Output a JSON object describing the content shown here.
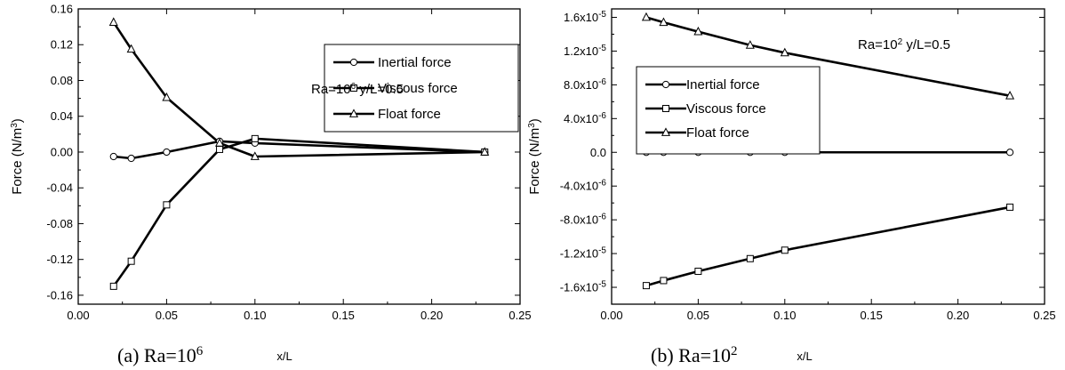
{
  "chart_data": [
    {
      "type": "line",
      "panel": "a",
      "caption": "(a) Ra=10",
      "caption_exp": "6",
      "annotation": "Ra=10",
      "annotation_exp": "6",
      "annotation_tail": " y/L=0.5",
      "xlabel": "x/L",
      "ylabel": "Force (N/m",
      "ylabel_exp": "3",
      "ylabel_tail": ")",
      "xlim": [
        0.0,
        0.25
      ],
      "ylim": [
        -0.17,
        0.16
      ],
      "xticks": [
        "0.00",
        "0.05",
        "0.10",
        "0.15",
        "0.20",
        "0.25"
      ],
      "xtick_values": [
        0.0,
        0.05,
        0.1,
        0.15,
        0.2,
        0.25
      ],
      "yticks": [
        "-0.16",
        "-0.12",
        "-0.08",
        "-0.04",
        "0.00",
        "0.04",
        "0.08",
        "0.12",
        "0.16"
      ],
      "ytick_values": [
        -0.16,
        -0.12,
        -0.08,
        -0.04,
        0.0,
        0.04,
        0.08,
        0.12,
        0.16
      ],
      "legend_position": "top-right",
      "x": [
        0.02,
        0.03,
        0.05,
        0.08,
        0.1,
        0.23
      ],
      "series": [
        {
          "name": "Inertial force",
          "marker": "circle",
          "values": [
            -0.005,
            -0.007,
            0.0,
            0.012,
            0.01,
            0.0
          ]
        },
        {
          "name": "Viscous force",
          "marker": "square",
          "values": [
            -0.15,
            -0.122,
            -0.059,
            0.003,
            0.015,
            0.0
          ]
        },
        {
          "name": "Float force",
          "marker": "triangle",
          "values": [
            0.145,
            0.115,
            0.061,
            0.01,
            -0.005,
            0.0
          ]
        }
      ]
    },
    {
      "type": "line",
      "panel": "b",
      "caption": "(b) Ra=10",
      "caption_exp": "2",
      "annotation": "Ra=10",
      "annotation_exp": "2",
      "annotation_tail": " y/L=0.5",
      "xlabel": "x/L",
      "ylabel": "Force (N/m",
      "ylabel_exp": "3",
      "ylabel_tail": ")",
      "xlim": [
        0.0,
        0.25
      ],
      "ylim": [
        -1.8e-05,
        1.7e-05
      ],
      "xticks": [
        "0.00",
        "0.05",
        "0.10",
        "0.15",
        "0.20",
        "0.25"
      ],
      "xtick_values": [
        0.0,
        0.05,
        0.1,
        0.15,
        0.2,
        0.25
      ],
      "yticks": [
        {
          "m": "-1.6x10",
          "e": "-5",
          "v": -1.6e-05
        },
        {
          "m": "-1.2x10",
          "e": "-5",
          "v": -1.2e-05
        },
        {
          "m": "-8.0x10",
          "e": "-6",
          "v": -8e-06
        },
        {
          "m": "-4.0x10",
          "e": "-6",
          "v": -4e-06
        },
        {
          "m": "0.0",
          "e": "",
          "v": 0.0
        },
        {
          "m": "4.0x10",
          "e": "-6",
          "v": 4e-06
        },
        {
          "m": "8.0x10",
          "e": "-6",
          "v": 8e-06
        },
        {
          "m": "1.2x10",
          "e": "-5",
          "v": 1.2e-05
        },
        {
          "m": "1.6x10",
          "e": "-5",
          "v": 1.6e-05
        }
      ],
      "legend_position": "top-left",
      "x": [
        0.02,
        0.03,
        0.05,
        0.08,
        0.1,
        0.23
      ],
      "series": [
        {
          "name": "Inertial force",
          "marker": "circle",
          "values": [
            0.0,
            0.0,
            0.0,
            0.0,
            0.0,
            0.0
          ]
        },
        {
          "name": "Viscous force",
          "marker": "square",
          "values": [
            -1.58e-05,
            -1.52e-05,
            -1.41e-05,
            -1.26e-05,
            -1.16e-05,
            -6.5e-06
          ]
        },
        {
          "name": "Float force",
          "marker": "triangle",
          "values": [
            1.6e-05,
            1.54e-05,
            1.43e-05,
            1.27e-05,
            1.18e-05,
            6.7e-06
          ]
        }
      ]
    }
  ]
}
